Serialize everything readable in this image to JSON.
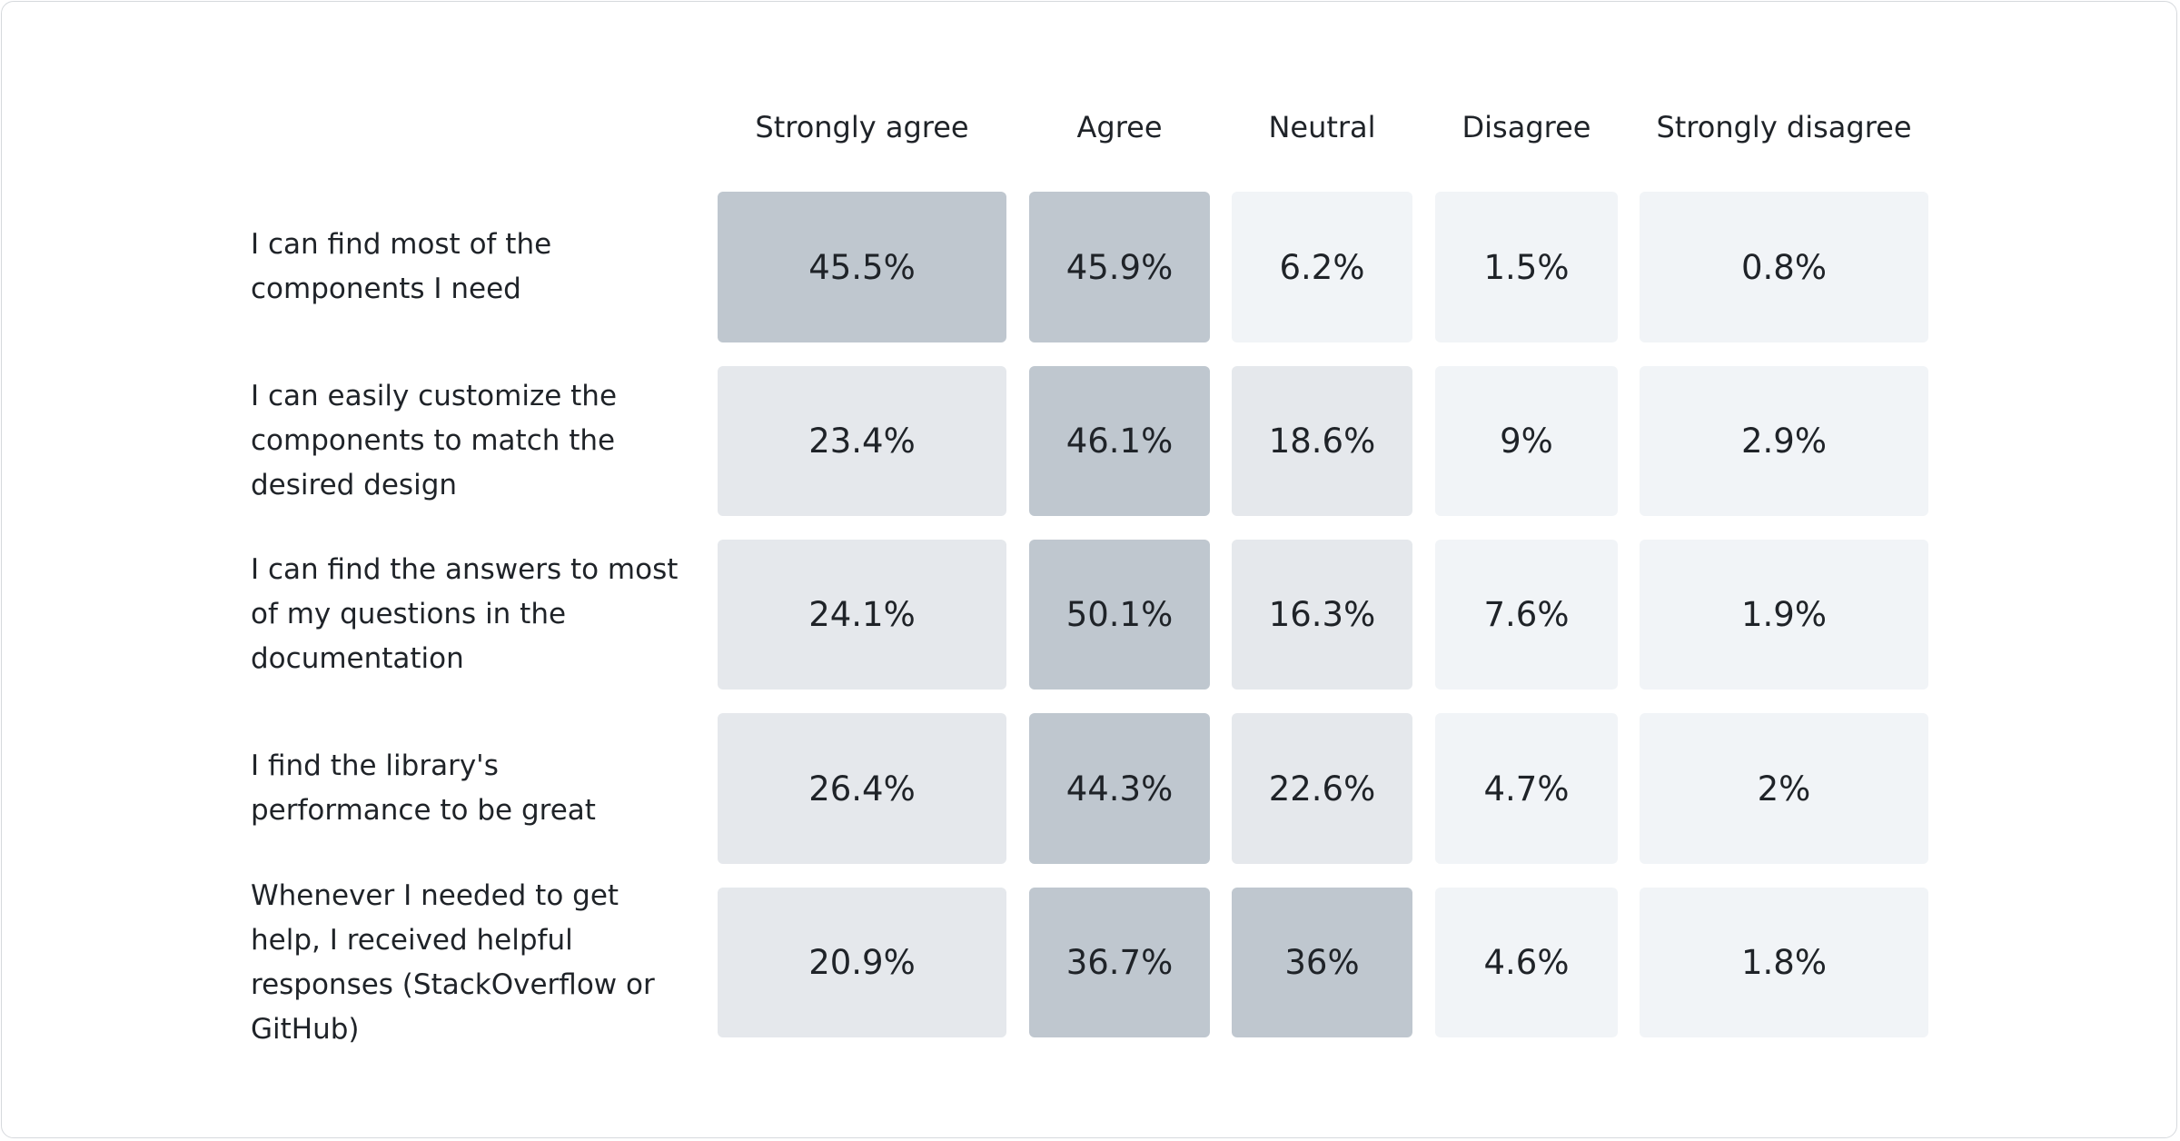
{
  "chart_data": {
    "type": "heatmap",
    "categories": [
      "Strongly agree",
      "Agree",
      "Neutral",
      "Disagree",
      "Strongly disagree"
    ],
    "series": [
      {
        "name": "I can find most of the components I need",
        "values": [
          45.5,
          45.9,
          6.2,
          1.5,
          0.8
        ],
        "value_labels": [
          "45.5%",
          "45.9%",
          "6.2%",
          "1.5%",
          "0.8%"
        ],
        "colors": [
          "#bfc7cf",
          "#bfc7cf",
          "#f1f4f7",
          "#f1f4f7",
          "#f1f4f7"
        ]
      },
      {
        "name": "I can easily customize the components to match the desired design",
        "values": [
          23.4,
          46.1,
          18.6,
          9,
          2.9
        ],
        "value_labels": [
          "23.4%",
          "46.1%",
          "18.6%",
          "9%",
          "2.9%"
        ],
        "colors": [
          "#e5e8ec",
          "#bfc7cf",
          "#e5e8ec",
          "#f1f4f7",
          "#f1f4f7"
        ]
      },
      {
        "name": "I can find the answers to most of my questions in the documentation",
        "values": [
          24.1,
          50.1,
          16.3,
          7.6,
          1.9
        ],
        "value_labels": [
          "24.1%",
          "50.1%",
          "16.3%",
          "7.6%",
          "1.9%"
        ],
        "colors": [
          "#e5e8ec",
          "#bfc7cf",
          "#e5e8ec",
          "#f1f4f7",
          "#f1f4f7"
        ]
      },
      {
        "name": "I find the library's performance to be great",
        "values": [
          26.4,
          44.3,
          22.6,
          4.7,
          2
        ],
        "value_labels": [
          "26.4%",
          "44.3%",
          "22.6%",
          "4.7%",
          "2%"
        ],
        "colors": [
          "#e5e8ec",
          "#bfc7cf",
          "#e5e8ec",
          "#f1f4f7",
          "#f1f4f7"
        ]
      },
      {
        "name": "Whenever I needed to get help, I received helpful responses (StackOverflow or GitHub)",
        "values": [
          20.9,
          36.7,
          36,
          4.6,
          1.8
        ],
        "value_labels": [
          "20.9%",
          "36.7%",
          "36%",
          "4.6%",
          "1.8%"
        ],
        "colors": [
          "#e5e8ec",
          "#bfc7cf",
          "#bfc7cf",
          "#f1f4f7",
          "#f1f4f7"
        ]
      }
    ]
  }
}
